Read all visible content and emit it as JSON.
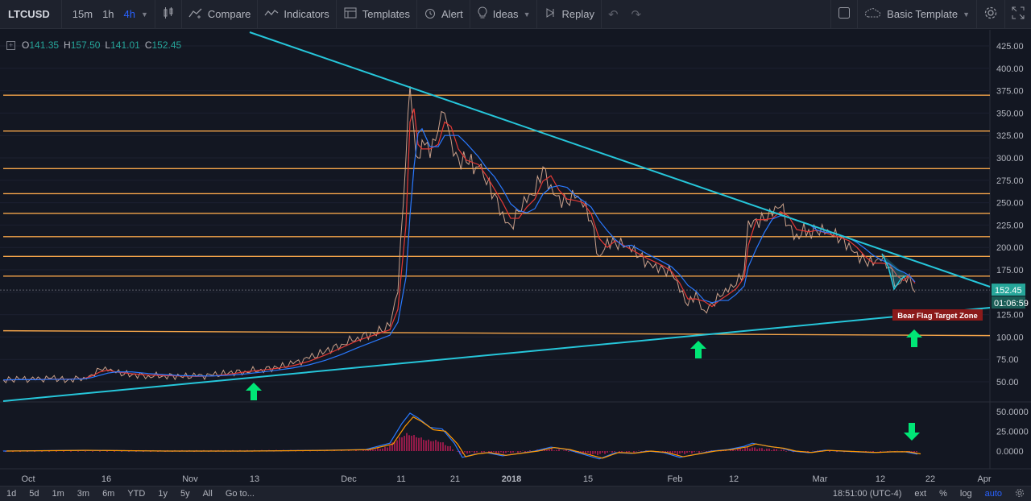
{
  "toolbar": {
    "symbol": "LTCUSD",
    "timeframes": [
      "15m",
      "1h",
      "4h"
    ],
    "active_timeframe": "4h",
    "compare": "Compare",
    "indicators": "Indicators",
    "templates": "Templates",
    "alert": "Alert",
    "ideas": "Ideas",
    "replay": "Replay",
    "template_name": "Basic Template"
  },
  "ohlc": {
    "o_label": "O",
    "o": "141.35",
    "h_label": "H",
    "h": "157.50",
    "l_label": "L",
    "l": "141.01",
    "c_label": "C",
    "c": "152.45"
  },
  "price_badge": "152.45",
  "countdown_badge": "01:06:59",
  "annotation": "Bear Flag Target Zone",
  "colors": {
    "background": "#131722",
    "trendline": "#26c6da",
    "horizontal_levels": "#f5a54a",
    "up_arrow": "#00e676",
    "down_arrow": "#00e676",
    "target_zone": "#8b1a1a",
    "price_badge": "#26a69a",
    "ma_fast": "#e53935",
    "ma_slow": "#2979ff",
    "oscillator_signal": "#ff9800",
    "oscillator_hist": "#e91e63"
  },
  "chart_data": {
    "type": "line",
    "title": "",
    "price_axis_ticks": [
      425,
      400,
      375,
      350,
      325,
      300,
      275,
      250,
      225,
      200,
      175,
      150,
      125,
      100,
      75,
      50
    ],
    "price_axis_labels": [
      "425.00",
      "400.00",
      "375.00",
      "350.00",
      "325.00",
      "300.00",
      "275.00",
      "250.00",
      "225.00",
      "200.00",
      "175.00",
      "150.00",
      "125.00",
      "100.00",
      "75.00",
      "50.00"
    ],
    "ylim": [
      30,
      440
    ],
    "horizontal_levels": [
      370,
      330,
      288,
      260,
      238,
      212,
      190,
      168,
      107
    ],
    "time_axis_labels": [
      "Oct",
      "16",
      "Nov",
      "13",
      "Dec",
      "11",
      "21",
      "2018",
      "15",
      "Feb",
      "12",
      "Mar",
      "12",
      "22",
      "Apr"
    ],
    "price_series": [
      [
        0,
        52
      ],
      [
        20,
        53
      ],
      [
        40,
        52
      ],
      [
        60,
        54
      ],
      [
        80,
        52
      ],
      [
        100,
        55
      ],
      [
        110,
        58
      ],
      [
        120,
        64
      ],
      [
        130,
        62
      ],
      [
        140,
        60
      ],
      [
        160,
        58
      ],
      [
        180,
        57
      ],
      [
        200,
        57
      ],
      [
        220,
        56
      ],
      [
        240,
        56
      ],
      [
        260,
        57
      ],
      [
        280,
        60
      ],
      [
        300,
        62
      ],
      [
        320,
        64
      ],
      [
        340,
        66
      ],
      [
        360,
        70
      ],
      [
        380,
        76
      ],
      [
        400,
        84
      ],
      [
        420,
        92
      ],
      [
        440,
        100
      ],
      [
        460,
        104
      ],
      [
        480,
        112
      ],
      [
        490,
        150
      ],
      [
        500,
        300
      ],
      [
        505,
        380
      ],
      [
        510,
        330
      ],
      [
        515,
        300
      ],
      [
        520,
        320
      ],
      [
        530,
        300
      ],
      [
        540,
        330
      ],
      [
        548,
        350
      ],
      [
        556,
        320
      ],
      [
        565,
        300
      ],
      [
        575,
        295
      ],
      [
        590,
        290
      ],
      [
        600,
        270
      ],
      [
        610,
        260
      ],
      [
        620,
        240
      ],
      [
        630,
        225
      ],
      [
        640,
        240
      ],
      [
        650,
        250
      ],
      [
        660,
        258
      ],
      [
        670,
        290
      ],
      [
        680,
        270
      ],
      [
        690,
        258
      ],
      [
        700,
        250
      ],
      [
        710,
        255
      ],
      [
        720,
        245
      ],
      [
        730,
        230
      ],
      [
        740,
        190
      ],
      [
        750,
        210
      ],
      [
        760,
        205
      ],
      [
        770,
        200
      ],
      [
        780,
        195
      ],
      [
        790,
        190
      ],
      [
        800,
        185
      ],
      [
        810,
        182
      ],
      [
        820,
        176
      ],
      [
        830,
        170
      ],
      [
        840,
        150
      ],
      [
        850,
        135
      ],
      [
        860,
        150
      ],
      [
        870,
        130
      ],
      [
        880,
        138
      ],
      [
        890,
        145
      ],
      [
        900,
        150
      ],
      [
        910,
        158
      ],
      [
        920,
        175
      ],
      [
        925,
        230
      ],
      [
        935,
        232
      ],
      [
        945,
        230
      ],
      [
        955,
        235
      ],
      [
        965,
        245
      ],
      [
        975,
        225
      ],
      [
        985,
        215
      ],
      [
        1000,
        220
      ],
      [
        1010,
        218
      ],
      [
        1020,
        215
      ],
      [
        1030,
        212
      ],
      [
        1040,
        210
      ],
      [
        1050,
        205
      ],
      [
        1060,
        195
      ],
      [
        1070,
        185
      ],
      [
        1080,
        180
      ],
      [
        1090,
        185
      ],
      [
        1100,
        178
      ],
      [
        1110,
        158
      ],
      [
        1118,
        168
      ],
      [
        1125,
        170
      ],
      [
        1132,
        150
      ]
    ],
    "oscillator_ticks": [
      50,
      25,
      0
    ],
    "oscillator_labels": [
      "50.0000",
      "25.0000",
      "0.0000"
    ],
    "oscillator_series": [
      [
        0,
        0
      ],
      [
        100,
        1
      ],
      [
        200,
        0
      ],
      [
        300,
        0
      ],
      [
        400,
        1
      ],
      [
        450,
        2
      ],
      [
        480,
        10
      ],
      [
        495,
        35
      ],
      [
        505,
        48
      ],
      [
        515,
        42
      ],
      [
        530,
        30
      ],
      [
        545,
        28
      ],
      [
        560,
        10
      ],
      [
        570,
        -8
      ],
      [
        585,
        -4
      ],
      [
        600,
        -2
      ],
      [
        620,
        -6
      ],
      [
        640,
        -3
      ],
      [
        660,
        0
      ],
      [
        680,
        5
      ],
      [
        700,
        2
      ],
      [
        720,
        -4
      ],
      [
        740,
        -10
      ],
      [
        760,
        -2
      ],
      [
        780,
        -3
      ],
      [
        800,
        0
      ],
      [
        820,
        -2
      ],
      [
        840,
        -8
      ],
      [
        860,
        -4
      ],
      [
        880,
        0
      ],
      [
        900,
        2
      ],
      [
        920,
        6
      ],
      [
        930,
        10
      ],
      [
        940,
        8
      ],
      [
        950,
        6
      ],
      [
        965,
        4
      ],
      [
        980,
        0
      ],
      [
        1000,
        -2
      ],
      [
        1020,
        1
      ],
      [
        1040,
        0
      ],
      [
        1060,
        -1
      ],
      [
        1080,
        -2
      ],
      [
        1100,
        -1
      ],
      [
        1120,
        -1
      ],
      [
        1135,
        -4
      ]
    ]
  },
  "bottombar": {
    "ranges": [
      "1d",
      "5d",
      "1m",
      "3m",
      "6m",
      "YTD",
      "1y",
      "5y",
      "All"
    ],
    "goto": "Go to...",
    "time": "18:51:00 (UTC-4)",
    "ext": "ext",
    "pct": "%",
    "log": "log",
    "auto": "auto"
  }
}
